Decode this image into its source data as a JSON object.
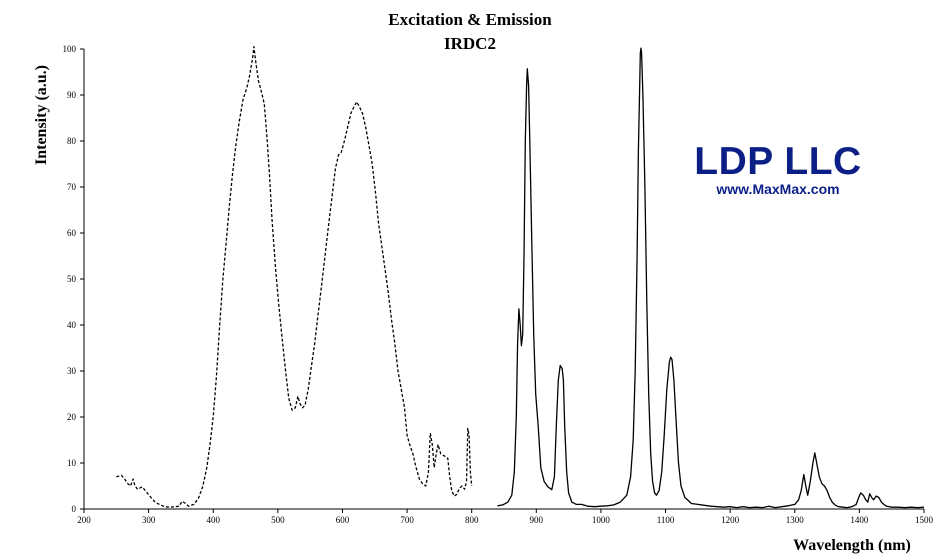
{
  "chart_data": {
    "type": "line",
    "title": "Excitation & Emission",
    "subtitle": "IRDC2",
    "xlabel": "Wavelength (nm)",
    "ylabel": "Intensity (a.u.)",
    "xlim": [
      200,
      1500
    ],
    "ylim": [
      0,
      100
    ],
    "xticks": [
      200,
      300,
      400,
      500,
      600,
      700,
      800,
      900,
      1000,
      1100,
      1200,
      1300,
      1400,
      1500
    ],
    "yticks": [
      0,
      10,
      20,
      30,
      40,
      50,
      60,
      70,
      80,
      90,
      100
    ],
    "grid": false,
    "legend": "none",
    "series": [
      {
        "style": "dashed",
        "color": "#000000",
        "points": [
          [
            250,
            7
          ],
          [
            258,
            7.3
          ],
          [
            263,
            6.5
          ],
          [
            268,
            5.5
          ],
          [
            272,
            5
          ],
          [
            276,
            6.5
          ],
          [
            279,
            5
          ],
          [
            283,
            4.3
          ],
          [
            290,
            4.8
          ],
          [
            296,
            3.8
          ],
          [
            303,
            2.6
          ],
          [
            310,
            1.5
          ],
          [
            318,
            0.9
          ],
          [
            325,
            0.5
          ],
          [
            333,
            0.4
          ],
          [
            340,
            0.5
          ],
          [
            347,
            0.6
          ],
          [
            352,
            1.7
          ],
          [
            356,
            1.3
          ],
          [
            362,
            0.6
          ],
          [
            370,
            1
          ],
          [
            377,
            2.3
          ],
          [
            384,
            5
          ],
          [
            390,
            9
          ],
          [
            395,
            14
          ],
          [
            400,
            20
          ],
          [
            405,
            29
          ],
          [
            410,
            40
          ],
          [
            415,
            50
          ],
          [
            420,
            58
          ],
          [
            425,
            66
          ],
          [
            430,
            73
          ],
          [
            435,
            79
          ],
          [
            440,
            84
          ],
          [
            446,
            89
          ],
          [
            452,
            91.5
          ],
          [
            456,
            94
          ],
          [
            461,
            98
          ],
          [
            463,
            100.5
          ],
          [
            466,
            97
          ],
          [
            470,
            93
          ],
          [
            475,
            90.5
          ],
          [
            479,
            88
          ],
          [
            483,
            81
          ],
          [
            487,
            73
          ],
          [
            491,
            63
          ],
          [
            496,
            53
          ],
          [
            501,
            45
          ],
          [
            506,
            38
          ],
          [
            512,
            30
          ],
          [
            517,
            24
          ],
          [
            522,
            21.5
          ],
          [
            527,
            22
          ],
          [
            531,
            24.5
          ],
          [
            534,
            23
          ],
          [
            538,
            22
          ],
          [
            542,
            22.5
          ],
          [
            547,
            26
          ],
          [
            552,
            31
          ],
          [
            557,
            36
          ],
          [
            562,
            42
          ],
          [
            568,
            49
          ],
          [
            573,
            55
          ],
          [
            578,
            61
          ],
          [
            584,
            68
          ],
          [
            589,
            74
          ],
          [
            594,
            77
          ],
          [
            598,
            77.5
          ],
          [
            603,
            80
          ],
          [
            608,
            83
          ],
          [
            613,
            86
          ],
          [
            618,
            87.5
          ],
          [
            622,
            88.5
          ],
          [
            626,
            87.5
          ],
          [
            631,
            86
          ],
          [
            636,
            83
          ],
          [
            641,
            79
          ],
          [
            646,
            75
          ],
          [
            651,
            69
          ],
          [
            656,
            62
          ],
          [
            661,
            57
          ],
          [
            666,
            52
          ],
          [
            671,
            47
          ],
          [
            676,
            41
          ],
          [
            681,
            36
          ],
          [
            686,
            30
          ],
          [
            691,
            26
          ],
          [
            696,
            22
          ],
          [
            700,
            16
          ],
          [
            704,
            14
          ],
          [
            709,
            12
          ],
          [
            714,
            9
          ],
          [
            719,
            6.5
          ],
          [
            724,
            5.5
          ],
          [
            729,
            5
          ],
          [
            733,
            8
          ],
          [
            736,
            16.5
          ],
          [
            739,
            14
          ],
          [
            742,
            9
          ],
          [
            745,
            12
          ],
          [
            748,
            14
          ],
          [
            752,
            12
          ],
          [
            758,
            11.5
          ],
          [
            763,
            11
          ],
          [
            766,
            7
          ],
          [
            769,
            4
          ],
          [
            773,
            2.8
          ],
          [
            777,
            3.2
          ],
          [
            781,
            4.5
          ],
          [
            785,
            5
          ],
          [
            789,
            4.3
          ],
          [
            792,
            6
          ],
          [
            794,
            17.5
          ],
          [
            796,
            16
          ],
          [
            798,
            8
          ],
          [
            800,
            5
          ]
        ]
      },
      {
        "style": "solid",
        "color": "#000000",
        "points": [
          [
            840,
            0.7
          ],
          [
            848,
            0.9
          ],
          [
            856,
            1.5
          ],
          [
            862,
            3
          ],
          [
            866,
            8
          ],
          [
            869,
            20
          ],
          [
            871,
            36
          ],
          [
            873,
            43.5
          ],
          [
            875,
            40
          ],
          [
            877,
            35.5
          ],
          [
            879,
            38
          ],
          [
            881,
            55
          ],
          [
            883,
            80
          ],
          [
            885,
            92
          ],
          [
            886,
            95.7
          ],
          [
            888,
            92
          ],
          [
            890,
            80
          ],
          [
            893,
            58
          ],
          [
            896,
            38
          ],
          [
            899,
            25
          ],
          [
            903,
            18
          ],
          [
            907,
            9
          ],
          [
            912,
            6
          ],
          [
            918,
            4.8
          ],
          [
            924,
            4.2
          ],
          [
            928,
            7
          ],
          [
            931,
            18
          ],
          [
            934,
            28
          ],
          [
            937,
            31.2
          ],
          [
            940,
            30.5
          ],
          [
            942,
            28
          ],
          [
            944,
            18
          ],
          [
            947,
            8
          ],
          [
            950,
            3.5
          ],
          [
            955,
            1.5
          ],
          [
            962,
            1
          ],
          [
            970,
            1
          ],
          [
            980,
            0.6
          ],
          [
            990,
            0.5
          ],
          [
            1000,
            0.6
          ],
          [
            1010,
            0.7
          ],
          [
            1020,
            0.9
          ],
          [
            1030,
            1.5
          ],
          [
            1040,
            3
          ],
          [
            1046,
            7
          ],
          [
            1050,
            15
          ],
          [
            1053,
            30
          ],
          [
            1056,
            55
          ],
          [
            1058,
            78
          ],
          [
            1060,
            92
          ],
          [
            1061,
            99
          ],
          [
            1062,
            100.2
          ],
          [
            1063,
            99
          ],
          [
            1065,
            90
          ],
          [
            1068,
            70
          ],
          [
            1071,
            45
          ],
          [
            1074,
            25
          ],
          [
            1077,
            12
          ],
          [
            1080,
            6
          ],
          [
            1083,
            3.5
          ],
          [
            1086,
            3
          ],
          [
            1090,
            4
          ],
          [
            1094,
            8
          ],
          [
            1098,
            16
          ],
          [
            1102,
            26
          ],
          [
            1106,
            32
          ],
          [
            1108,
            33
          ],
          [
            1110,
            32.5
          ],
          [
            1113,
            28
          ],
          [
            1116,
            20
          ],
          [
            1120,
            10
          ],
          [
            1124,
            5
          ],
          [
            1130,
            2.5
          ],
          [
            1140,
            1.2
          ],
          [
            1150,
            1
          ],
          [
            1160,
            0.8
          ],
          [
            1170,
            0.6
          ],
          [
            1180,
            0.5
          ],
          [
            1190,
            0.4
          ],
          [
            1200,
            0.5
          ],
          [
            1210,
            0.3
          ],
          [
            1220,
            0.5
          ],
          [
            1230,
            0.3
          ],
          [
            1240,
            0.4
          ],
          [
            1250,
            0.3
          ],
          [
            1260,
            0.6
          ],
          [
            1270,
            0.3
          ],
          [
            1280,
            0.5
          ],
          [
            1290,
            0.7
          ],
          [
            1300,
            1
          ],
          [
            1306,
            2
          ],
          [
            1310,
            4
          ],
          [
            1314,
            7.5
          ],
          [
            1317,
            5
          ],
          [
            1320,
            3
          ],
          [
            1324,
            6
          ],
          [
            1328,
            10
          ],
          [
            1331,
            12.2
          ],
          [
            1334,
            10
          ],
          [
            1338,
            7
          ],
          [
            1342,
            5.5
          ],
          [
            1346,
            5
          ],
          [
            1350,
            4
          ],
          [
            1354,
            2.5
          ],
          [
            1358,
            1.5
          ],
          [
            1363,
            0.8
          ],
          [
            1368,
            0.5
          ],
          [
            1375,
            0.4
          ],
          [
            1380,
            0.3
          ],
          [
            1385,
            0.4
          ],
          [
            1390,
            0.6
          ],
          [
            1395,
            1
          ],
          [
            1399,
            2.5
          ],
          [
            1402,
            3.5
          ],
          [
            1406,
            3
          ],
          [
            1410,
            2
          ],
          [
            1413,
            1.5
          ],
          [
            1416,
            3.3
          ],
          [
            1419,
            2.5
          ],
          [
            1422,
            2
          ],
          [
            1426,
            2.8
          ],
          [
            1430,
            2.5
          ],
          [
            1434,
            1.5
          ],
          [
            1438,
            1
          ],
          [
            1442,
            0.6
          ],
          [
            1450,
            0.4
          ],
          [
            1460,
            0.4
          ],
          [
            1470,
            0.3
          ],
          [
            1480,
            0.4
          ],
          [
            1490,
            0.3
          ],
          [
            1500,
            0.4
          ]
        ]
      }
    ]
  },
  "branding": {
    "name": "LDP LLC",
    "url": "www.MaxMax.com",
    "color": "#0b1f87"
  }
}
